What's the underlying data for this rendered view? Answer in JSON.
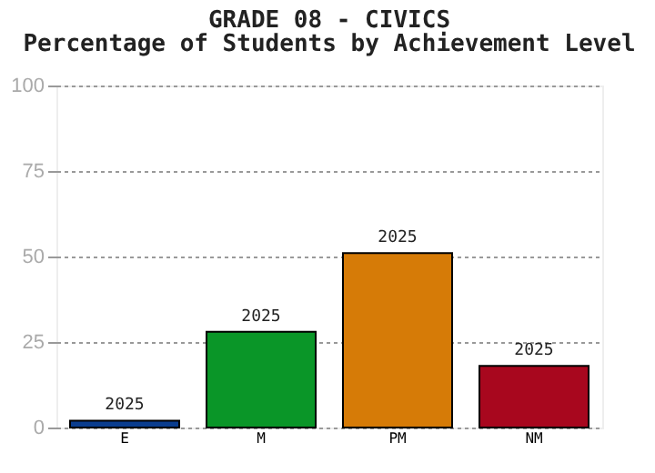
{
  "chart_data": {
    "type": "bar",
    "title": "GRADE 08 - CIVICS",
    "subtitle": "Percentage of Students by Achievement Level",
    "categories": [
      "E",
      "M",
      "PM",
      "NM"
    ],
    "series": [
      {
        "name": "2025",
        "colors": [
          "#0a3d8f",
          "#0a9628",
          "#d67b07",
          "#a8071e"
        ],
        "values": [
          2,
          28,
          51,
          18
        ]
      }
    ],
    "ylim": [
      0,
      100
    ],
    "yticks": [
      0,
      25,
      50,
      75,
      100
    ],
    "grid": "y",
    "legend": false
  }
}
